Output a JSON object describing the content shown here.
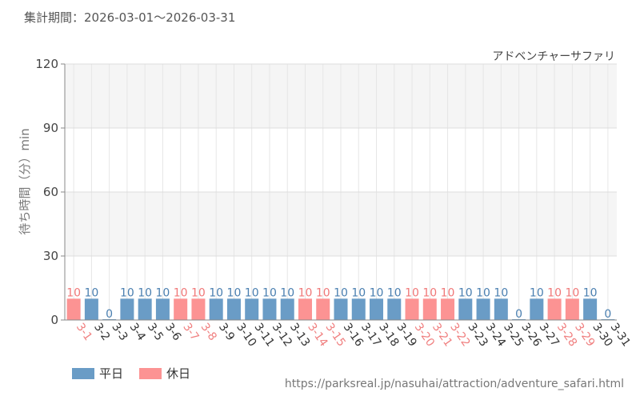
{
  "header": {
    "period_label": "集計期間：",
    "period_range": "2026-03-01～2026-03-31"
  },
  "chart_data": {
    "type": "bar",
    "title": "アドベンチャーサファリ",
    "ylabel": "待ち時間（分）min",
    "xlabel": "",
    "ylim": [
      0,
      120
    ],
    "yticks": [
      0,
      30,
      60,
      90,
      120
    ],
    "grid": true,
    "categories": [
      "3-1",
      "3-2",
      "3-3",
      "3-4",
      "3-5",
      "3-6",
      "3-7",
      "3-8",
      "3-9",
      "3-10",
      "3-11",
      "3-12",
      "3-13",
      "3-14",
      "3-15",
      "3-16",
      "3-17",
      "3-18",
      "3-19",
      "3-20",
      "3-21",
      "3-22",
      "3-23",
      "3-24",
      "3-25",
      "3-26",
      "3-27",
      "3-28",
      "3-29",
      "3-30",
      "3-31"
    ],
    "values": [
      10,
      10,
      0,
      10,
      10,
      10,
      10,
      10,
      10,
      10,
      10,
      10,
      10,
      10,
      10,
      10,
      10,
      10,
      10,
      10,
      10,
      10,
      10,
      10,
      10,
      0,
      10,
      10,
      10,
      10,
      0
    ],
    "day_type": [
      "holiday",
      "weekday",
      "weekday",
      "weekday",
      "weekday",
      "weekday",
      "holiday",
      "holiday",
      "weekday",
      "weekday",
      "weekday",
      "weekday",
      "weekday",
      "holiday",
      "holiday",
      "weekday",
      "weekday",
      "weekday",
      "weekday",
      "holiday",
      "holiday",
      "holiday",
      "weekday",
      "weekday",
      "weekday",
      "weekday",
      "weekday",
      "holiday",
      "holiday",
      "weekday",
      "weekday"
    ],
    "colors": {
      "weekday": "#6a9cc6",
      "holiday": "#fc9393",
      "weekday_label": "#333333",
      "holiday_label": "#f08080",
      "weekday_value": "#4a7fb0",
      "holiday_value": "#f07878"
    },
    "legend": {
      "position": "bottom-left",
      "entries": [
        {
          "key": "weekday",
          "label": "平日"
        },
        {
          "key": "holiday",
          "label": "休日"
        }
      ]
    }
  },
  "footer": {
    "source_url": "https://parksreal.jp/nasuhai/attraction/adventure_safari.html"
  }
}
